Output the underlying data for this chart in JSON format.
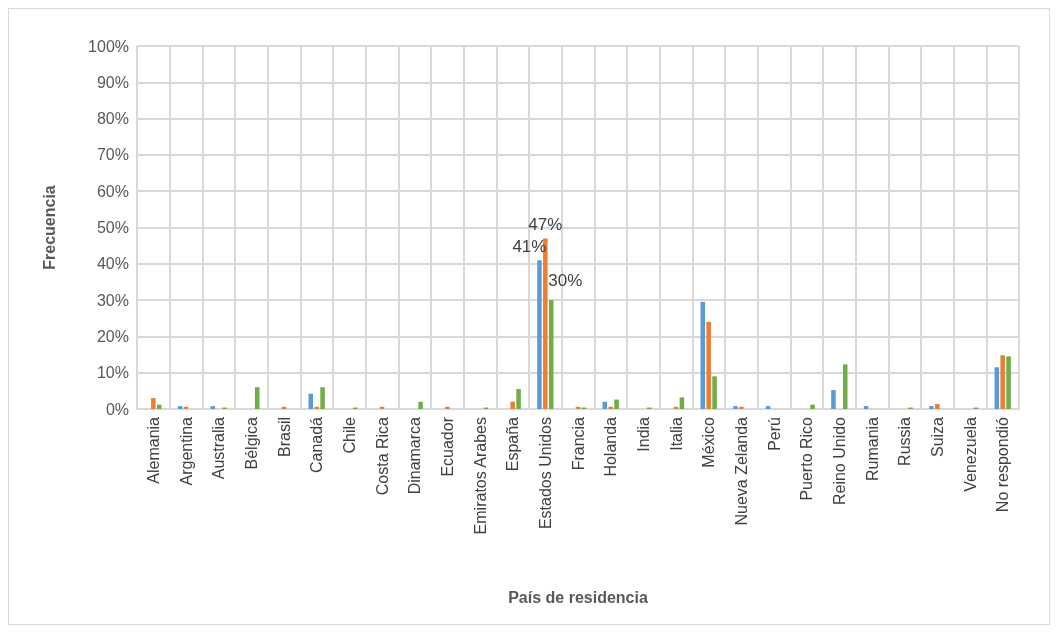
{
  "chart_data": {
    "type": "bar",
    "xlabel": "País de residencia",
    "ylabel": "Frecuencia",
    "categories": [
      "Alemania",
      "Argentina",
      "Australia",
      "Bélgica",
      "Brasil",
      "Canadá",
      "Chile",
      "Costa Rica",
      "Dinamarca",
      "Ecuador",
      "Emiratos Arabes",
      "España",
      "Estados Unidos",
      "Francia",
      "Holanda",
      "India",
      "Italia",
      "México",
      "Nueva Zelanda",
      "Perú",
      "Puerto Rico",
      "Reino Unido",
      "Rumania",
      "Russia",
      "Suiza",
      "Venezuela",
      "No respondió"
    ],
    "series": [
      {
        "color": "#5b9bd5",
        "values": [
          0,
          0.8,
          0.8,
          0,
          0,
          4.2,
          0,
          0,
          0,
          0,
          0,
          0,
          41,
          0,
          2,
          0,
          0,
          29.5,
          0.8,
          0.8,
          0,
          5.2,
          0.8,
          0,
          0.8,
          0,
          11.5
        ],
        "value_labels": [
          null,
          null,
          null,
          null,
          null,
          null,
          null,
          null,
          null,
          null,
          null,
          null,
          "41%",
          null,
          null,
          null,
          null,
          null,
          null,
          null,
          null,
          null,
          null,
          null,
          null,
          null,
          null
        ]
      },
      {
        "color": "#ed7d31",
        "values": [
          3,
          0.6,
          0,
          0,
          0.6,
          0.6,
          0,
          0.6,
          0,
          0.6,
          0,
          2,
          47,
          0.6,
          0.6,
          0,
          0.6,
          24,
          0.6,
          0,
          0,
          0,
          0,
          0,
          1.4,
          0,
          14.8
        ],
        "value_labels": [
          null,
          null,
          null,
          null,
          null,
          null,
          null,
          null,
          null,
          null,
          null,
          null,
          "47%",
          null,
          null,
          null,
          null,
          null,
          null,
          null,
          null,
          null,
          null,
          null,
          null,
          null,
          null
        ]
      },
      {
        "color": "#70ad47",
        "values": [
          1.2,
          0,
          0.4,
          6,
          0,
          6,
          0.4,
          0,
          2,
          0,
          0.4,
          5.5,
          30,
          0.4,
          2.6,
          0.4,
          3.2,
          9,
          0,
          0,
          1.2,
          12.3,
          0,
          0.4,
          0,
          0.4,
          14.5
        ],
        "value_labels": [
          null,
          null,
          null,
          null,
          null,
          null,
          null,
          null,
          null,
          null,
          null,
          null,
          "30%",
          null,
          null,
          null,
          null,
          null,
          null,
          null,
          null,
          null,
          null,
          null,
          null,
          null,
          null
        ]
      }
    ],
    "ylim": [
      0,
      100
    ],
    "yticks": [
      {
        "value": 0,
        "label": "0%"
      },
      {
        "value": 10,
        "label": "10%"
      },
      {
        "value": 20,
        "label": "20%"
      },
      {
        "value": 30,
        "label": "30%"
      },
      {
        "value": 40,
        "label": "40%"
      },
      {
        "value": 50,
        "label": "50%"
      },
      {
        "value": 60,
        "label": "60%"
      },
      {
        "value": 70,
        "label": "70%"
      },
      {
        "value": 80,
        "label": "80%"
      },
      {
        "value": 90,
        "label": "90%"
      },
      {
        "value": 100,
        "label": "100%"
      }
    ],
    "grid": true
  }
}
